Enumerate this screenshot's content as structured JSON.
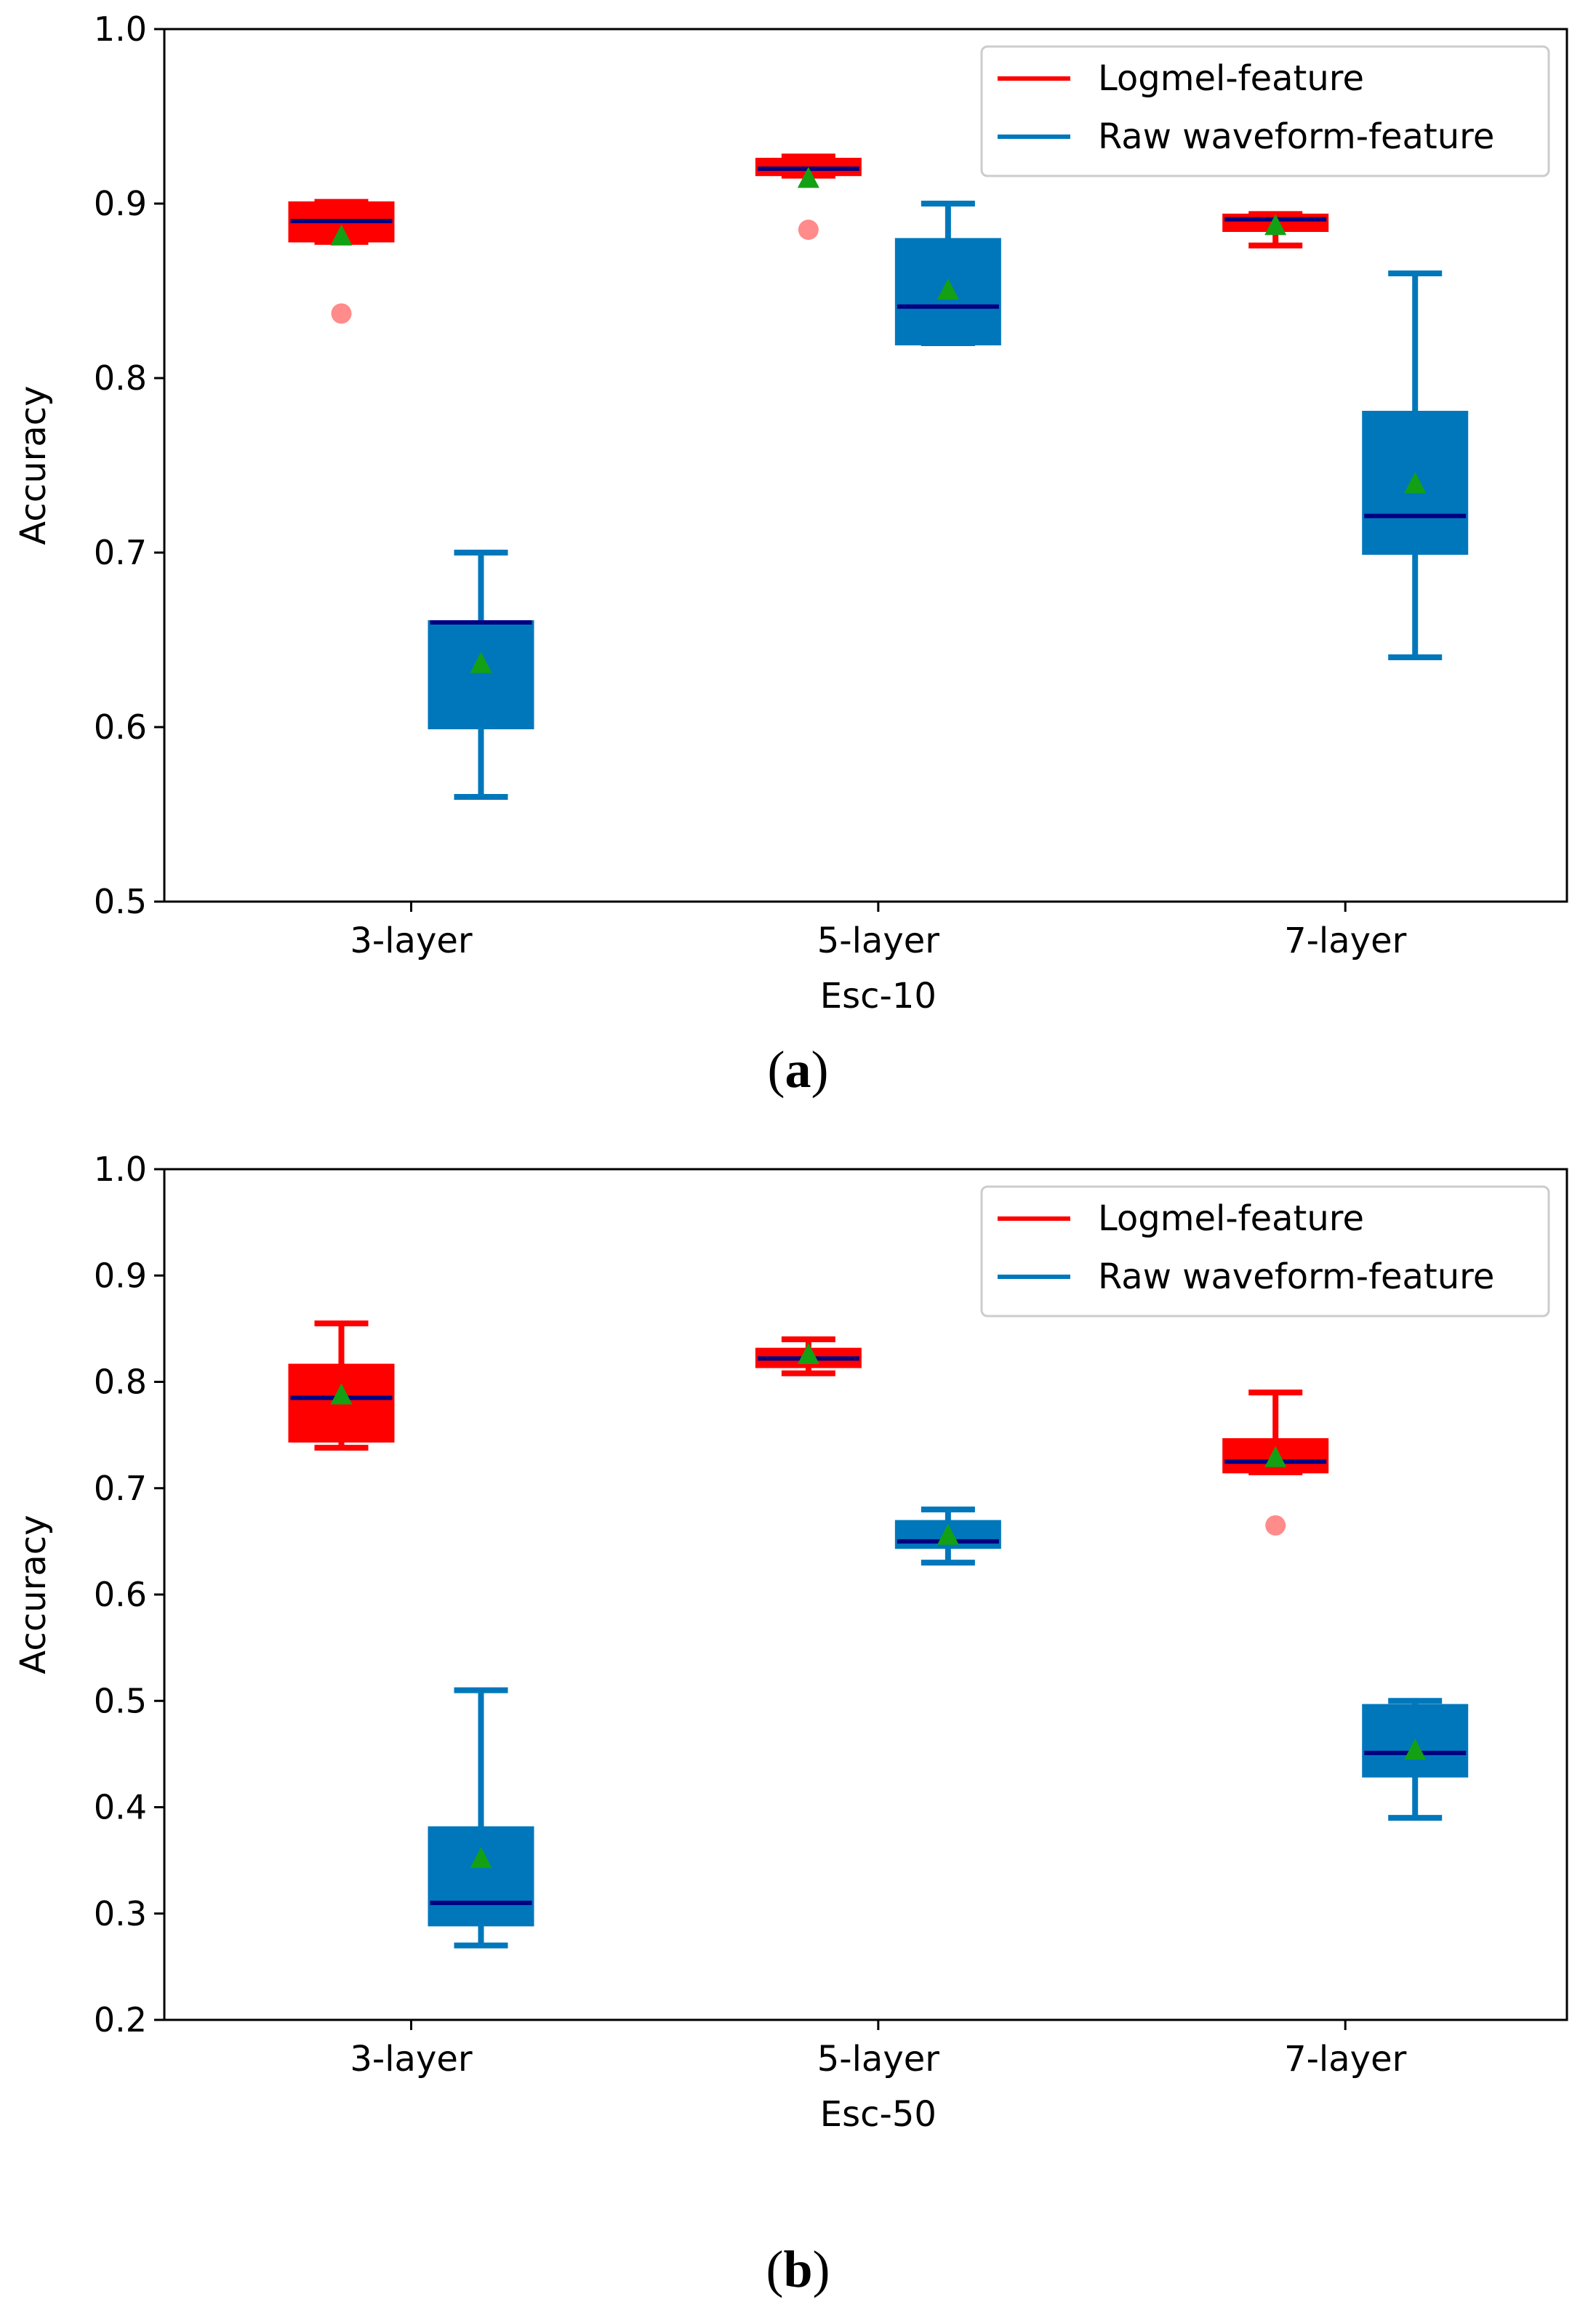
{
  "figure": {
    "caption_a": "a",
    "caption_b": "b"
  },
  "colors": {
    "logmel": "#ff0000",
    "raw": "#0077bb",
    "median": "#000080",
    "mean": "#14a014",
    "outlier": "#ff7777"
  },
  "chart_data": [
    {
      "type": "box",
      "title": "",
      "xlabel": "Esc-10",
      "ylabel": "Accuracy",
      "ylim": [
        0.5,
        1.0
      ],
      "yticks": [
        "0.5",
        "0.6",
        "0.7",
        "0.8",
        "0.9",
        "1.0"
      ],
      "categories": [
        "3-layer",
        "5-layer",
        "7-layer"
      ],
      "legend_position": "top-right",
      "series": [
        {
          "name": "Logmel-feature",
          "color": "#ff0000",
          "boxes": [
            {
              "whisker_low": 0.878,
              "q1": 0.879,
              "median": 0.89,
              "q3": 0.9,
              "whisker_high": 0.901,
              "mean": 0.881,
              "outliers": [
                0.837
              ]
            },
            {
              "whisker_low": 0.916,
              "q1": 0.917,
              "median": 0.92,
              "q3": 0.925,
              "whisker_high": 0.927,
              "mean": 0.914,
              "outliers": [
                0.885
              ]
            },
            {
              "whisker_low": 0.876,
              "q1": 0.885,
              "median": 0.891,
              "q3": 0.893,
              "whisker_high": 0.894,
              "mean": 0.887,
              "outliers": []
            }
          ]
        },
        {
          "name": "Raw waveform-feature",
          "color": "#0077bb",
          "boxes": [
            {
              "whisker_low": 0.56,
              "q1": 0.6,
              "median": 0.66,
              "q3": 0.66,
              "whisker_high": 0.7,
              "mean": 0.636,
              "outliers": []
            },
            {
              "whisker_low": 0.82,
              "q1": 0.82,
              "median": 0.841,
              "q3": 0.879,
              "whisker_high": 0.9,
              "mean": 0.85,
              "outliers": []
            },
            {
              "whisker_low": 0.64,
              "q1": 0.7,
              "median": 0.721,
              "q3": 0.78,
              "whisker_high": 0.86,
              "mean": 0.739,
              "outliers": []
            }
          ]
        }
      ]
    },
    {
      "type": "box",
      "title": "",
      "xlabel": "Esc-50",
      "ylabel": "Accuracy",
      "ylim": [
        0.2,
        1.0
      ],
      "yticks": [
        "0.2",
        "0.3",
        "0.4",
        "0.5",
        "0.6",
        "0.7",
        "0.8",
        "0.9",
        "1.0"
      ],
      "categories": [
        "3-layer",
        "5-layer",
        "7-layer"
      ],
      "legend_position": "top-right",
      "series": [
        {
          "name": "Logmel-feature",
          "color": "#ff0000",
          "boxes": [
            {
              "whisker_low": 0.738,
              "q1": 0.745,
              "median": 0.785,
              "q3": 0.815,
              "whisker_high": 0.855,
              "mean": 0.787,
              "outliers": []
            },
            {
              "whisker_low": 0.808,
              "q1": 0.815,
              "median": 0.822,
              "q3": 0.83,
              "whisker_high": 0.84,
              "mean": 0.825,
              "outliers": []
            },
            {
              "whisker_low": 0.715,
              "q1": 0.716,
              "median": 0.725,
              "q3": 0.745,
              "whisker_high": 0.79,
              "mean": 0.728,
              "outliers": [
                0.665
              ]
            }
          ]
        },
        {
          "name": "Raw waveform-feature",
          "color": "#0077bb",
          "boxes": [
            {
              "whisker_low": 0.27,
              "q1": 0.29,
              "median": 0.31,
              "q3": 0.38,
              "whisker_high": 0.51,
              "mean": 0.351,
              "outliers": []
            },
            {
              "whisker_low": 0.63,
              "q1": 0.645,
              "median": 0.65,
              "q3": 0.668,
              "whisker_high": 0.68,
              "mean": 0.655,
              "outliers": []
            },
            {
              "whisker_low": 0.39,
              "q1": 0.43,
              "median": 0.451,
              "q3": 0.495,
              "whisker_high": 0.5,
              "mean": 0.453,
              "outliers": []
            }
          ]
        }
      ]
    }
  ]
}
